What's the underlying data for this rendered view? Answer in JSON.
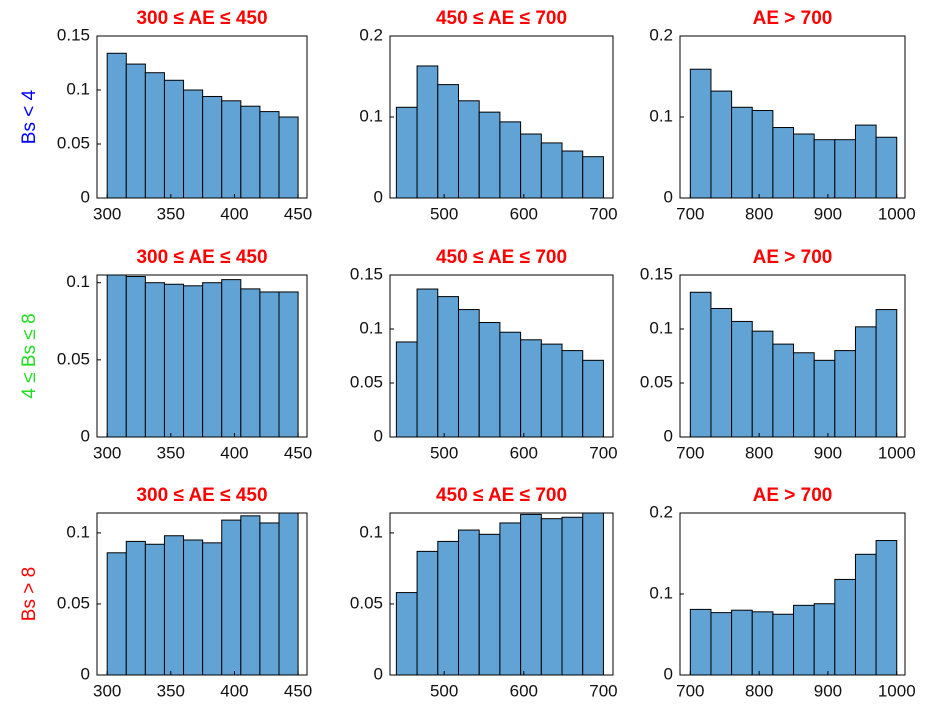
{
  "chart_data": [
    {
      "type": "histogram",
      "title": "300 ≤ AE ≤ 450",
      "title_color": "#ff0000",
      "ylabel": "Bs < 4",
      "ylabel_color": "#0000ff",
      "color": "#62a3d6",
      "bins": [
        300,
        315,
        330,
        345,
        360,
        375,
        390,
        405,
        420,
        435,
        450
      ],
      "values": [
        0.134,
        0.124,
        0.116,
        0.109,
        0.1,
        0.094,
        0.09,
        0.085,
        0.08,
        0.075
      ],
      "xlim": [
        292,
        457
      ],
      "xticks": [
        300,
        350,
        400,
        450
      ],
      "ylim": [
        0,
        0.15
      ],
      "yticks": [
        0,
        0.05,
        0.1,
        0.15
      ]
    },
    {
      "type": "histogram",
      "title": "450 ≤ AE ≤ 700",
      "title_color": "#ff0000",
      "color": "#62a3d6",
      "bins": [
        440,
        466,
        492,
        518,
        544,
        570,
        596,
        622,
        648,
        674,
        700
      ],
      "values": [
        0.112,
        0.163,
        0.14,
        0.12,
        0.106,
        0.094,
        0.079,
        0.068,
        0.058,
        0.051
      ],
      "xlim": [
        432,
        712
      ],
      "xticks": [
        500,
        600,
        700
      ],
      "ylim": [
        0,
        0.2
      ],
      "yticks": [
        0,
        0.1,
        0.2
      ]
    },
    {
      "type": "histogram",
      "title": "AE > 700",
      "title_color": "#ff0000",
      "color": "#62a3d6",
      "bins": [
        700,
        730,
        760,
        790,
        820,
        850,
        880,
        910,
        940,
        970,
        1000
      ],
      "values": [
        0.159,
        0.132,
        0.112,
        0.108,
        0.087,
        0.079,
        0.072,
        0.072,
        0.09,
        0.075
      ],
      "xlim": [
        685,
        1012
      ],
      "xticks": [
        700,
        800,
        900,
        1000
      ],
      "ylim": [
        0,
        0.2
      ],
      "yticks": [
        0,
        0.1,
        0.2
      ]
    },
    {
      "type": "histogram",
      "title": "300 ≤ AE ≤ 450",
      "title_color": "#ff0000",
      "ylabel": "4 ≤ Bs ≤ 8",
      "ylabel_color": "#22dd22",
      "color": "#62a3d6",
      "bins": [
        300,
        315,
        330,
        345,
        360,
        375,
        390,
        405,
        420,
        435,
        450
      ],
      "values": [
        0.105,
        0.104,
        0.1,
        0.099,
        0.098,
        0.1,
        0.102,
        0.096,
        0.094,
        0.094
      ],
      "xlim": [
        292,
        457
      ],
      "xticks": [
        300,
        350,
        400,
        450
      ],
      "ylim": [
        0,
        0.105
      ],
      "yticks": [
        0,
        0.05,
        0.1
      ]
    },
    {
      "type": "histogram",
      "title": "450 ≤ AE ≤ 700",
      "title_color": "#ff0000",
      "color": "#62a3d6",
      "bins": [
        440,
        466,
        492,
        518,
        544,
        570,
        596,
        622,
        648,
        674,
        700
      ],
      "values": [
        0.088,
        0.137,
        0.13,
        0.118,
        0.106,
        0.097,
        0.09,
        0.086,
        0.08,
        0.071
      ],
      "xlim": [
        432,
        712
      ],
      "xticks": [
        500,
        600,
        700
      ],
      "ylim": [
        0,
        0.15
      ],
      "yticks": [
        0,
        0.05,
        0.1,
        0.15
      ]
    },
    {
      "type": "histogram",
      "title": "AE > 700",
      "title_color": "#ff0000",
      "color": "#62a3d6",
      "bins": [
        700,
        730,
        760,
        790,
        820,
        850,
        880,
        910,
        940,
        970,
        1000
      ],
      "values": [
        0.134,
        0.119,
        0.107,
        0.098,
        0.086,
        0.078,
        0.071,
        0.08,
        0.102,
        0.118
      ],
      "xlim": [
        685,
        1012
      ],
      "xticks": [
        700,
        800,
        900,
        1000
      ],
      "ylim": [
        0,
        0.15
      ],
      "yticks": [
        0,
        0.05,
        0.1,
        0.15
      ]
    },
    {
      "type": "histogram",
      "title": "300 ≤ AE ≤ 450",
      "title_color": "#ff0000",
      "ylabel": "Bs > 8",
      "ylabel_color": "#ff0000",
      "color": "#62a3d6",
      "bins": [
        300,
        315,
        330,
        345,
        360,
        375,
        390,
        405,
        420,
        435,
        450
      ],
      "values": [
        0.086,
        0.094,
        0.092,
        0.098,
        0.095,
        0.093,
        0.109,
        0.112,
        0.107,
        0.114
      ],
      "xlim": [
        292,
        457
      ],
      "xticks": [
        300,
        350,
        400,
        450
      ],
      "ylim": [
        0,
        0.114
      ],
      "yticks": [
        0,
        0.05,
        0.1
      ]
    },
    {
      "type": "histogram",
      "title": "450 ≤ AE ≤ 700",
      "title_color": "#ff0000",
      "color": "#62a3d6",
      "bins": [
        440,
        466,
        492,
        518,
        544,
        570,
        596,
        622,
        648,
        674,
        700
      ],
      "values": [
        0.058,
        0.087,
        0.094,
        0.102,
        0.099,
        0.107,
        0.113,
        0.11,
        0.111,
        0.114
      ],
      "xlim": [
        432,
        712
      ],
      "xticks": [
        500,
        600,
        700
      ],
      "ylim": [
        0,
        0.114
      ],
      "yticks": [
        0,
        0.05,
        0.1
      ]
    },
    {
      "type": "histogram",
      "title": "AE > 700",
      "title_color": "#ff0000",
      "color": "#62a3d6",
      "bins": [
        700,
        730,
        760,
        790,
        820,
        850,
        880,
        910,
        940,
        970,
        1000
      ],
      "values": [
        0.081,
        0.077,
        0.08,
        0.078,
        0.075,
        0.086,
        0.088,
        0.118,
        0.149,
        0.166
      ],
      "xlim": [
        685,
        1012
      ],
      "xticks": [
        700,
        800,
        900,
        1000
      ],
      "ylim": [
        0,
        0.2
      ],
      "yticks": [
        0,
        0.1,
        0.2
      ]
    }
  ]
}
